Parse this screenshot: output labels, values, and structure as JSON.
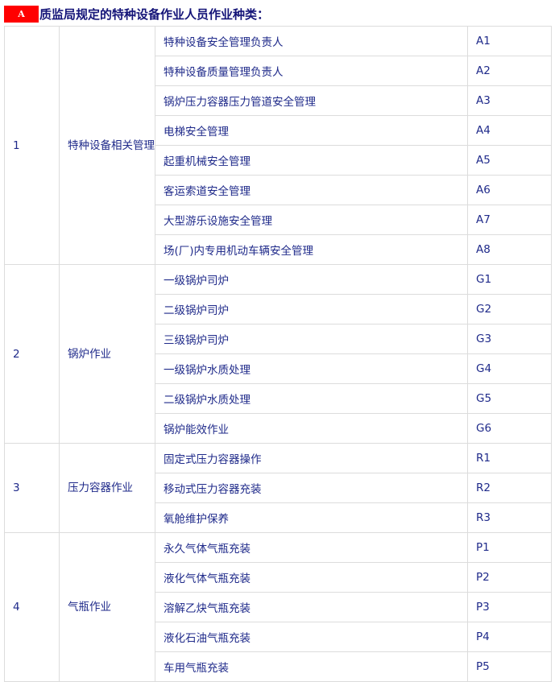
{
  "header": {
    "badge": "A",
    "title": "质监局规定的特种设备作业人员作业种类："
  },
  "groups": [
    {
      "no": "1",
      "category": "特种设备相关管理",
      "items": [
        [
          "特种设备安全管理负责人",
          "A1"
        ],
        [
          "特种设备质量管理负责人",
          "A2"
        ],
        [
          "锅炉压力容器压力管道安全管理",
          "A3"
        ],
        [
          "电梯安全管理",
          "A4"
        ],
        [
          "起重机械安全管理",
          "A5"
        ],
        [
          "客运索道安全管理",
          "A6"
        ],
        [
          "大型游乐设施安全管理",
          "A7"
        ],
        [
          "场(厂)内专用机动车辆安全管理",
          "A8"
        ]
      ]
    },
    {
      "no": "2",
      "category": "锅炉作业",
      "items": [
        [
          "一级锅炉司炉",
          "G1"
        ],
        [
          "二级锅炉司炉",
          "G2"
        ],
        [
          "三级锅炉司炉",
          "G3"
        ],
        [
          "一级锅炉水质处理",
          "G4"
        ],
        [
          "二级锅炉水质处理",
          "G5"
        ],
        [
          "锅炉能效作业",
          "G6"
        ]
      ]
    },
    {
      "no": "3",
      "category": "压力容器作业",
      "items": [
        [
          "固定式压力容器操作",
          "R1"
        ],
        [
          "移动式压力容器充装",
          "R2"
        ],
        [
          "氧舱维护保养",
          "R3"
        ]
      ]
    },
    {
      "no": "4",
      "category": "气瓶作业",
      "items": [
        [
          "永久气体气瓶充装",
          "P1"
        ],
        [
          "液化气体气瓶充装",
          "P2"
        ],
        [
          "溶解乙炔气瓶充装",
          "P3"
        ],
        [
          "液化石油气瓶充装",
          "P4"
        ],
        [
          "车用气瓶充装",
          "P5"
        ]
      ]
    }
  ]
}
